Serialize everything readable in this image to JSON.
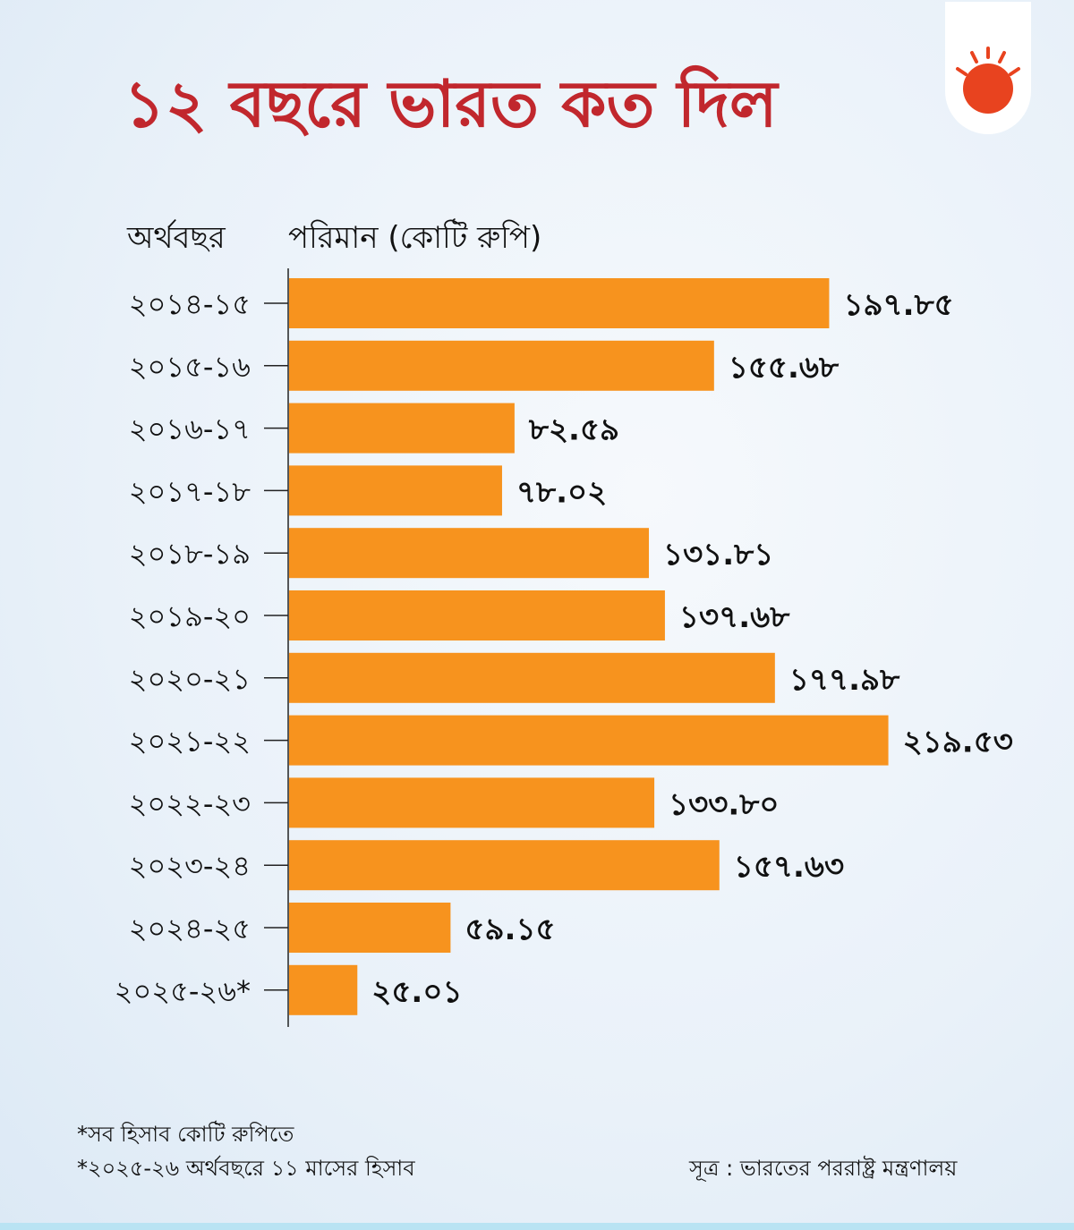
{
  "title": "১২ বছরে ভারত কত দিল",
  "headers": {
    "year": "অর্থবছর",
    "amount": "পরিমান (কোটি রুপি)"
  },
  "colors": {
    "title": "#c1272d",
    "bar": "#f7931e",
    "logo_sun": "#e8431f"
  },
  "chart_data": {
    "type": "bar",
    "orientation": "horizontal",
    "title": "১২ বছরে ভারত কত দিল",
    "xlabel": "পরিমান (কোটি রুপি)",
    "ylabel": "অর্থবছর",
    "categories": [
      "২০১৪-১৫",
      "২০১৫-১৬",
      "২০১৬-১৭",
      "২০১৭-১৮",
      "২০১৮-১৯",
      "২০১৯-২০",
      "২০২০-২১",
      "২০২১-২২",
      "২০২২-২৩",
      "২০২৩-২৪",
      "২০২৪-২৫",
      "২০২৫-২৬*"
    ],
    "values": [
      197.85,
      155.68,
      82.59,
      78.02,
      131.81,
      137.68,
      177.98,
      219.53,
      133.8,
      157.63,
      59.15,
      25.01
    ],
    "value_labels": [
      "১৯৭.৮৫",
      "১৫৫.৬৮",
      "৮২.৫৯",
      "৭৮.০২",
      "১৩১.৮১",
      "১৩৭.৬৮",
      "১৭৭.৯৮",
      "২১৯.৫৩",
      "১৩৩.৮০",
      "১৫৭.৬৩",
      "৫৯.১৫",
      "২৫.০১"
    ],
    "xlim": [
      0,
      220
    ],
    "grid": false
  },
  "footnotes": [
    "*সব হিসাব কোটি রুপিতে",
    "*২০২৫-২৬ অর্থবছরে ১১ মাসের হিসাব"
  ],
  "source": "সূত্র  : ভারতের পররাষ্ট্র মন্ত্রণালয়"
}
